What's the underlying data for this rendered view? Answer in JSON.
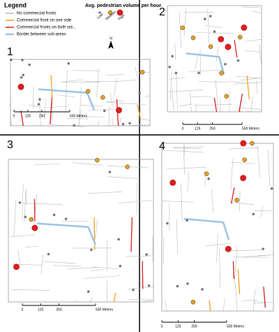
{
  "legend": {
    "title": "Legend",
    "items": [
      "No commercial fronts",
      "Commercial front on one side",
      "Commercial fronts on both sid...",
      "Border between sub-areas"
    ],
    "volume_title": "Avg. pedestrian volume per hour",
    "levels": [
      "Low",
      "Medium",
      "High"
    ],
    "north": "N"
  },
  "panels": [
    {
      "label": "1",
      "scale": [
        "0",
        "125",
        "250",
        "500 Meters"
      ]
    },
    {
      "label": "2",
      "scale": [
        "0",
        "125",
        "250",
        "500 Meters"
      ]
    },
    {
      "label": "3",
      "scale": [
        "0",
        "125",
        "250",
        "500 Meters"
      ]
    },
    {
      "label": "4",
      "scale": [
        "0",
        "125",
        "250",
        "500 Meters"
      ]
    }
  ]
}
